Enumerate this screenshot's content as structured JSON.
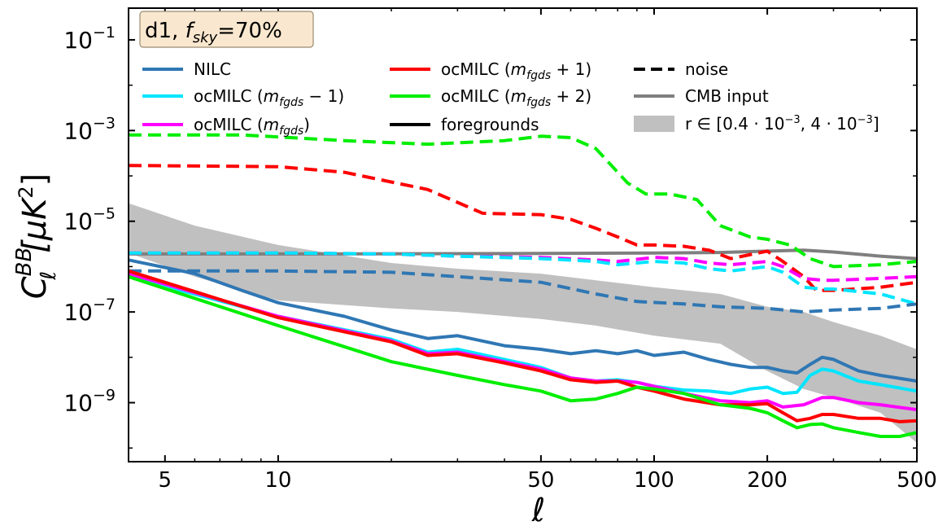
{
  "chart_data": {
    "type": "line",
    "title": "",
    "xscale": "log",
    "yscale": "log",
    "xlim": [
      4,
      500
    ],
    "ylim": [
      5e-11,
      0.5
    ],
    "xticks": [
      5,
      10,
      50,
      100,
      200,
      500
    ],
    "xticklabels": [
      "5",
      "10",
      "50",
      "100",
      "200",
      "500"
    ],
    "yticks": [
      1e-09,
      1e-07,
      1e-05,
      0.001,
      0.1
    ],
    "ytick_base": "10",
    "ytick_exps": [
      "−9",
      "−7",
      "−5",
      "−3",
      "−1"
    ],
    "xlabel": "ℓ",
    "ylabel": {
      "main": "C",
      "sup": "BB",
      "sub": "ℓ",
      "unit": "[μK",
      "unit_sup": "2",
      "unit_close": "]"
    },
    "annotation": {
      "pre": "d1, ",
      "f": "f",
      "sub": "sky",
      "post": "=70%",
      "bg": "#f9e8cf"
    },
    "grid": false,
    "legend_position": "top",
    "legend": [
      {
        "label": "NILC",
        "color": "#2f77b4",
        "style": "solid"
      },
      {
        "label": "ocMILC (",
        "math": "m",
        "sub": "fgds",
        "suffix": " − 1)",
        "color": "#00e5ff",
        "style": "solid"
      },
      {
        "label": "ocMILC (",
        "math": "m",
        "sub": "fgds",
        "suffix": ")",
        "color": "#ff00ff",
        "style": "solid"
      },
      {
        "label": "ocMILC (",
        "math": "m",
        "sub": "fgds",
        "suffix": " + 1)",
        "color": "#ff0000",
        "style": "solid"
      },
      {
        "label": "ocMILC (",
        "math": "m",
        "sub": "fgds",
        "suffix": " + 2)",
        "color": "#00ee00",
        "style": "solid"
      },
      {
        "label": "foregrounds",
        "color": "#000000",
        "style": "solid"
      },
      {
        "label": "noise",
        "color": "#000000",
        "style": "dashed"
      },
      {
        "label": "CMB input",
        "color": "#808080",
        "style": "solid"
      },
      {
        "label": "r ∈ [0.4 · 10",
        "exp1": "−3",
        "mid": ", 4 · 10",
        "exp2": "−3",
        "close": "]",
        "color": "#c0c0c0",
        "style": "band"
      }
    ],
    "series": [
      {
        "key": "cmb",
        "color": "#7f7f7f",
        "style": "solid",
        "x": [
          4,
          10,
          50,
          100,
          150,
          200,
          250,
          300,
          400,
          500
        ],
        "y": [
          1.9e-06,
          1.9e-06,
          1.95e-06,
          2e-06,
          2.05e-06,
          2.2e-06,
          2.3e-06,
          2.1e-06,
          1.7e-06,
          1.5e-06
        ]
      },
      {
        "key": "noise-green",
        "color": "#00ee00",
        "style": "dashed",
        "x": [
          4,
          8,
          15,
          25,
          40,
          50,
          60,
          70,
          85,
          95,
          110,
          130,
          150,
          180,
          200,
          230,
          260,
          300,
          400,
          500
        ],
        "y": [
          0.0008,
          0.0008,
          0.0006,
          0.0005,
          0.0006,
          0.00075,
          0.0007,
          0.0004,
          7e-05,
          4e-05,
          4e-05,
          3e-05,
          8e-06,
          4.5e-06,
          4e-06,
          3e-06,
          1.5e-06,
          1e-06,
          1.1e-06,
          1.3e-06
        ]
      },
      {
        "key": "noise-red",
        "color": "#ff0000",
        "style": "dashed",
        "x": [
          4,
          10,
          15,
          25,
          35,
          50,
          60,
          70,
          80,
          90,
          100,
          120,
          140,
          160,
          200,
          220,
          250,
          270,
          300,
          400,
          500
        ],
        "y": [
          0.00017,
          0.00016,
          0.00012,
          5e-05,
          1.5e-05,
          1.4e-05,
          1.1e-05,
          7e-06,
          4.5e-06,
          3e-06,
          3e-06,
          2.8e-06,
          2.3e-06,
          1.5e-06,
          2.2e-06,
          1.3e-06,
          6e-07,
          3e-07,
          3e-07,
          3.5e-07,
          4.5e-07
        ]
      },
      {
        "key": "noise-magenta",
        "color": "#ff00ff",
        "style": "dashed",
        "x": [
          4,
          10,
          20,
          30,
          50,
          70,
          80,
          100,
          120,
          140,
          160,
          200,
          220,
          250,
          280,
          300,
          400,
          500
        ],
        "y": [
          2e-06,
          2e-06,
          1.9e-06,
          1.7e-06,
          1.6e-06,
          1.4e-06,
          1.3e-06,
          1.6e-06,
          1.5e-06,
          1.2e-06,
          1.1e-06,
          1.3e-06,
          1e-06,
          5.5e-07,
          5e-07,
          5e-07,
          5.5e-07,
          6e-07
        ]
      },
      {
        "key": "noise-cyan",
        "color": "#00e5ff",
        "style": "dashed",
        "x": [
          4,
          10,
          20,
          30,
          50,
          70,
          80,
          100,
          120,
          140,
          160,
          200,
          220,
          250,
          280,
          300,
          400,
          500
        ],
        "y": [
          2e-06,
          2e-06,
          1.9e-06,
          1.7e-06,
          1.5e-06,
          1.3e-06,
          1.1e-06,
          1.3e-06,
          1.2e-06,
          9e-07,
          8e-07,
          1e-06,
          7.5e-07,
          3.5e-07,
          3.2e-07,
          3.2e-07,
          2.5e-07,
          1.5e-07
        ]
      },
      {
        "key": "noise-blue",
        "color": "#2f77b4",
        "style": "dashed",
        "x": [
          4,
          10,
          20,
          30,
          50,
          70,
          90,
          120,
          150,
          200,
          250,
          300,
          400,
          500
        ],
        "y": [
          8e-07,
          8e-07,
          7.5e-07,
          6e-07,
          4.5e-07,
          2.5e-07,
          1.7e-07,
          1.5e-07,
          1.3e-07,
          1.2e-07,
          1e-07,
          1.1e-07,
          1.2e-07,
          1.5e-07
        ]
      },
      {
        "key": "nilc",
        "color": "#2f77b4",
        "style": "solid",
        "x": [
          4,
          6,
          8,
          10,
          15,
          20,
          25,
          30,
          40,
          50,
          60,
          70,
          80,
          90,
          100,
          120,
          140,
          160,
          180,
          200,
          220,
          240,
          260,
          280,
          300,
          350,
          400,
          500
        ],
        "y": [
          1.4e-06,
          7e-07,
          3e-07,
          1.6e-07,
          8e-08,
          4e-08,
          2.6e-08,
          3e-08,
          1.8e-08,
          1.5e-08,
          1.2e-08,
          1.4e-08,
          1.2e-08,
          1.4e-08,
          1.1e-08,
          1.3e-08,
          9e-09,
          7e-09,
          6e-09,
          6e-09,
          5e-09,
          4.5e-09,
          7e-09,
          1e-08,
          9e-09,
          5e-09,
          4e-09,
          3e-09
        ]
      },
      {
        "key": "fg-cyan",
        "color": "#00e5ff",
        "style": "solid",
        "x": [
          4,
          10,
          20,
          25,
          30,
          40,
          50,
          60,
          70,
          80,
          90,
          100,
          120,
          140,
          160,
          180,
          200,
          220,
          240,
          260,
          280,
          300,
          350,
          400,
          500
        ],
        "y": [
          6e-07,
          8e-08,
          2.5e-08,
          1.3e-08,
          1.5e-08,
          9e-09,
          6e-09,
          3.5e-09,
          3e-09,
          3.2e-09,
          2.8e-09,
          2.3e-09,
          1.9e-09,
          1.8e-09,
          1.6e-09,
          2e-09,
          2.2e-09,
          1.6e-09,
          1.7e-09,
          4e-09,
          5.5e-09,
          5e-09,
          3e-09,
          2.5e-09,
          1.8e-09
        ]
      },
      {
        "key": "fg-magenta",
        "color": "#ff00ff",
        "style": "solid",
        "x": [
          4,
          10,
          20,
          25,
          30,
          40,
          50,
          60,
          70,
          80,
          90,
          100,
          120,
          150,
          180,
          200,
          220,
          250,
          280,
          300,
          350,
          400,
          500
        ],
        "y": [
          7e-07,
          8e-08,
          2.3e-08,
          1.2e-08,
          1.3e-08,
          8e-09,
          5.5e-09,
          3.5e-09,
          3e-09,
          3e-09,
          2.8e-09,
          2.3e-09,
          1.6e-09,
          1.1e-09,
          1e-09,
          1.1e-09,
          8e-10,
          9e-10,
          1.3e-09,
          1.3e-09,
          1e-09,
          9e-10,
          7e-10
        ]
      },
      {
        "key": "fg-red",
        "color": "#ff0000",
        "style": "solid",
        "x": [
          4,
          10,
          20,
          25,
          30,
          40,
          50,
          60,
          70,
          80,
          90,
          100,
          120,
          150,
          180,
          200,
          220,
          240,
          260,
          280,
          300,
          350,
          400,
          450,
          500
        ],
        "y": [
          8e-07,
          7.5e-08,
          2.2e-08,
          1.1e-08,
          1.2e-08,
          7.5e-09,
          5e-09,
          3.2e-09,
          2.8e-09,
          3e-09,
          2.2e-09,
          1.8e-09,
          1.2e-09,
          9e-10,
          9e-10,
          9.5e-10,
          6e-10,
          4e-10,
          4.5e-10,
          5.5e-10,
          5.5e-10,
          4.5e-10,
          4.5e-10,
          3.8e-10,
          4e-10
        ]
      },
      {
        "key": "fg-green",
        "color": "#00ee00",
        "style": "solid",
        "x": [
          4,
          10,
          20,
          30,
          40,
          50,
          60,
          70,
          80,
          90,
          100,
          120,
          150,
          180,
          200,
          220,
          240,
          260,
          280,
          300,
          350,
          400,
          450,
          500
        ],
        "y": [
          6e-07,
          5e-08,
          8e-09,
          4e-09,
          2.5e-09,
          1.8e-09,
          1.1e-09,
          1.2e-09,
          1.6e-09,
          2.2e-09,
          2e-09,
          1.6e-09,
          9e-10,
          7.5e-10,
          6e-10,
          4e-10,
          2.8e-10,
          3.3e-10,
          3.4e-10,
          2.8e-10,
          2.2e-10,
          1.8e-10,
          1.8e-10,
          2.2e-10
        ]
      }
    ],
    "band": {
      "color": "#c0c0c0",
      "x": [
        4,
        6,
        10,
        20,
        30,
        50,
        70,
        100,
        150,
        200,
        250,
        300,
        400,
        500
      ],
      "upper": [
        2.5e-05,
        8e-06,
        3e-06,
        1.2e-06,
        9e-07,
        7e-07,
        5e-07,
        3.5e-07,
        2.5e-07,
        1.3e-07,
        1e-07,
        6e-08,
        3e-08,
        1.5e-08
      ],
      "lower": [
        2e-06,
        6e-07,
        1.8e-07,
        1.2e-07,
        1e-07,
        7e-08,
        5e-08,
        3e-08,
        2e-08,
        5e-09,
        2e-09,
        1.3e-09,
        6e-10,
        1.3e-10
      ]
    }
  }
}
